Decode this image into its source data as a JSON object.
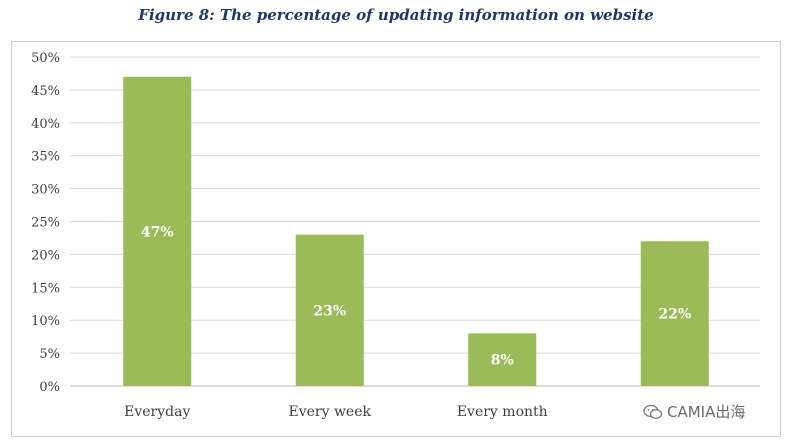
{
  "chart_data": {
    "type": "bar",
    "title": "Figure 8: The percentage of updating information on website",
    "categories": [
      "Everyday",
      "Every week",
      "Every month",
      ""
    ],
    "values": [
      47,
      23,
      8,
      22
    ],
    "data_labels": [
      "47%",
      "23%",
      "8%",
      "22%"
    ],
    "y_ticks": [
      "0%",
      "5%",
      "10%",
      "15%",
      "20%",
      "25%",
      "30%",
      "35%",
      "40%",
      "45%",
      "50%"
    ],
    "ylim": [
      0,
      50
    ],
    "grid": true,
    "legend": "none",
    "bar_color": "#9bbb59"
  },
  "watermark": {
    "text": "CAMIA出海",
    "icon": "wechat-logo-icon"
  }
}
